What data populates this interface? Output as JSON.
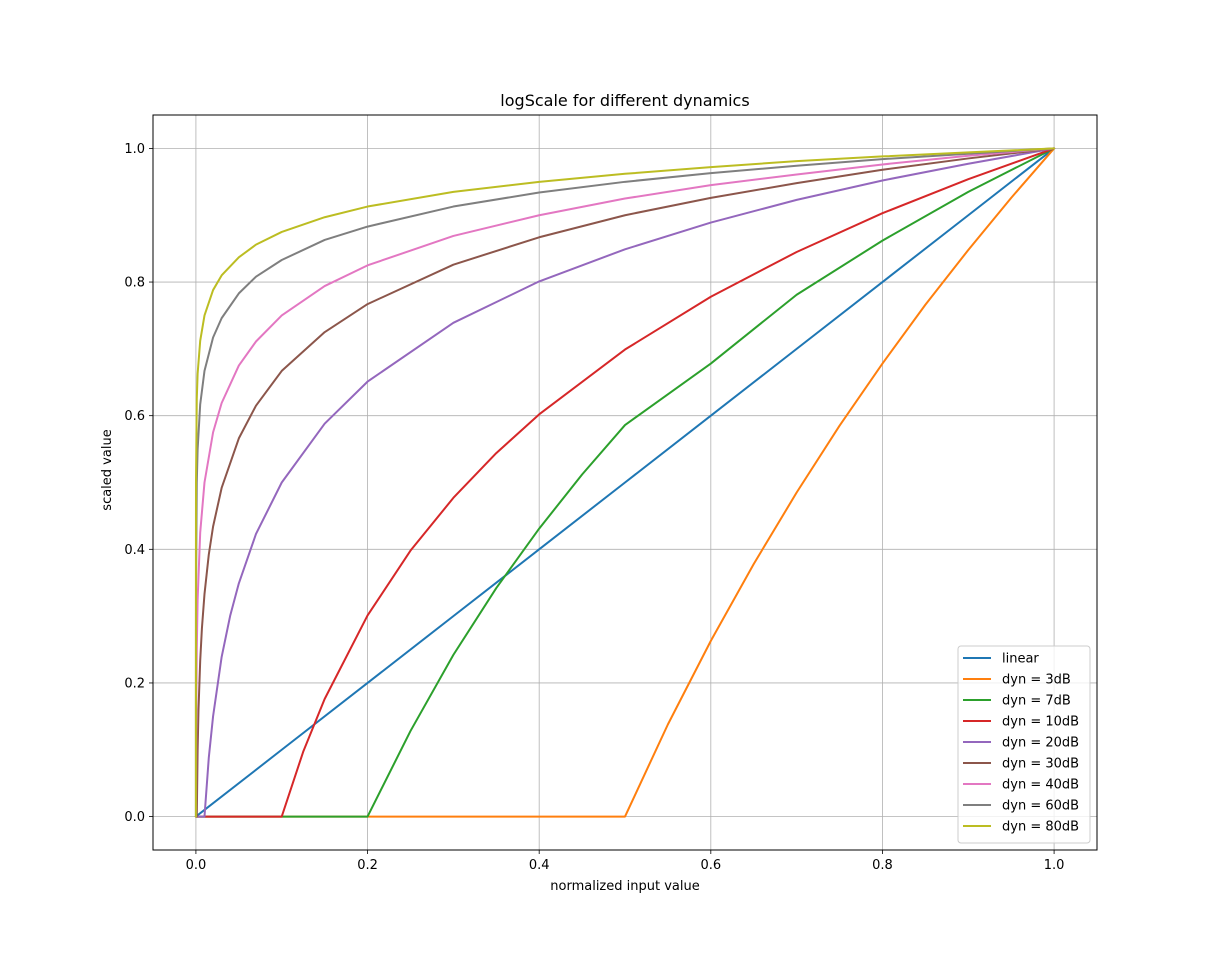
{
  "chart_data": {
    "type": "line",
    "title": "logScale for different dynamics",
    "xlabel": "normalized input value",
    "ylabel": "scaled value",
    "xlim": [
      -0.05,
      1.05
    ],
    "ylim": [
      -0.05,
      1.05
    ],
    "grid": true,
    "legend_placement": "lower-right",
    "xticks": [
      0.0,
      0.2,
      0.4,
      0.6,
      0.8,
      1.0
    ],
    "xtick_labels": [
      "0.0",
      "0.2",
      "0.4",
      "0.6",
      "0.8",
      "1.0"
    ],
    "yticks": [
      0.0,
      0.2,
      0.4,
      0.6,
      0.8,
      1.0
    ],
    "ytick_labels": [
      "0.0",
      "0.2",
      "0.4",
      "0.6",
      "0.8",
      "1.0"
    ],
    "series": [
      {
        "name": "linear",
        "color": "#1f77b4",
        "x": [
          0.0,
          0.1,
          0.2,
          0.3,
          0.4,
          0.5,
          0.6,
          0.7,
          0.8,
          0.9,
          1.0
        ],
        "y": [
          0.0,
          0.1,
          0.2,
          0.3,
          0.4,
          0.5,
          0.6,
          0.7,
          0.8,
          0.9,
          1.0
        ]
      },
      {
        "name": "dyn = 3dB",
        "color": "#ff7f0e",
        "x": [
          0.0,
          0.5,
          0.55,
          0.6,
          0.65,
          0.7,
          0.75,
          0.8,
          0.85,
          0.9,
          0.95,
          1.0
        ],
        "y": [
          0.0,
          0.0,
          0.138,
          0.263,
          0.378,
          0.485,
          0.585,
          0.678,
          0.766,
          0.848,
          0.926,
          1.0
        ]
      },
      {
        "name": "dyn = 7dB",
        "color": "#2ca02c",
        "x": [
          0.0,
          0.2,
          0.25,
          0.3,
          0.35,
          0.4,
          0.45,
          0.5,
          0.6,
          0.7,
          0.8,
          0.9,
          1.0
        ],
        "y": [
          0.0,
          0.0,
          0.128,
          0.242,
          0.342,
          0.431,
          0.512,
          0.586,
          0.678,
          0.781,
          0.862,
          0.935,
          1.0
        ]
      },
      {
        "name": "dyn = 10dB",
        "color": "#d62728",
        "x": [
          0.0,
          0.1,
          0.125,
          0.15,
          0.2,
          0.25,
          0.3,
          0.35,
          0.4,
          0.5,
          0.6,
          0.7,
          0.8,
          0.9,
          1.0
        ],
        "y": [
          0.0,
          0.0,
          0.097,
          0.176,
          0.301,
          0.398,
          0.477,
          0.544,
          0.602,
          0.699,
          0.778,
          0.845,
          0.903,
          0.954,
          1.0
        ]
      },
      {
        "name": "dyn = 20dB",
        "color": "#9467bd",
        "x": [
          0.0,
          0.005,
          0.01,
          0.015,
          0.02,
          0.03,
          0.04,
          0.05,
          0.07,
          0.1,
          0.15,
          0.2,
          0.3,
          0.4,
          0.5,
          0.6,
          0.7,
          0.8,
          0.9,
          1.0
        ],
        "y": [
          0.0,
          0.0,
          0.0,
          0.088,
          0.15,
          0.239,
          0.301,
          0.349,
          0.423,
          0.5,
          0.588,
          0.651,
          0.739,
          0.801,
          0.849,
          0.889,
          0.923,
          0.952,
          0.977,
          1.0
        ]
      },
      {
        "name": "dyn = 30dB",
        "color": "#8c564b",
        "x": [
          0.0,
          0.001,
          0.002,
          0.003,
          0.005,
          0.007,
          0.01,
          0.015,
          0.02,
          0.03,
          0.05,
          0.07,
          0.1,
          0.15,
          0.2,
          0.3,
          0.4,
          0.5,
          0.6,
          0.7,
          0.8,
          0.9,
          1.0
        ],
        "y": [
          0.0,
          0.0,
          0.1,
          0.159,
          0.233,
          0.282,
          0.333,
          0.392,
          0.434,
          0.492,
          0.566,
          0.615,
          0.667,
          0.725,
          0.767,
          0.826,
          0.867,
          0.9,
          0.926,
          0.948,
          0.968,
          0.985,
          1.0
        ]
      },
      {
        "name": "dyn = 40dB",
        "color": "#e377c2",
        "x": [
          0.0,
          0.0001,
          0.0005,
          0.001,
          0.002,
          0.005,
          0.01,
          0.02,
          0.03,
          0.05,
          0.07,
          0.1,
          0.15,
          0.2,
          0.3,
          0.4,
          0.5,
          0.6,
          0.7,
          0.8,
          0.9,
          1.0
        ],
        "y": [
          0.0,
          0.0,
          0.175,
          0.25,
          0.325,
          0.425,
          0.5,
          0.575,
          0.619,
          0.675,
          0.711,
          0.75,
          0.794,
          0.825,
          0.869,
          0.9,
          0.925,
          0.945,
          0.961,
          0.976,
          0.989,
          1.0
        ]
      },
      {
        "name": "dyn = 60dB",
        "color": "#7f7f7f",
        "x": [
          0.0,
          1e-05,
          0.0001,
          0.001,
          0.002,
          0.005,
          0.01,
          0.02,
          0.03,
          0.05,
          0.07,
          0.1,
          0.15,
          0.2,
          0.3,
          0.4,
          0.5,
          0.6,
          0.7,
          0.8,
          0.9,
          1.0
        ],
        "y": [
          0.0,
          0.167,
          0.333,
          0.5,
          0.55,
          0.617,
          0.667,
          0.717,
          0.746,
          0.783,
          0.808,
          0.833,
          0.863,
          0.883,
          0.913,
          0.934,
          0.95,
          0.963,
          0.974,
          0.984,
          0.992,
          1.0
        ]
      },
      {
        "name": "dyn = 80dB",
        "color": "#bcbd22",
        "x": [
          0.0,
          1e-05,
          0.0001,
          0.001,
          0.002,
          0.005,
          0.01,
          0.02,
          0.03,
          0.05,
          0.07,
          0.1,
          0.15,
          0.2,
          0.3,
          0.4,
          0.5,
          0.6,
          0.7,
          0.8,
          0.9,
          1.0
        ],
        "y": [
          0.0,
          0.375,
          0.5,
          0.625,
          0.663,
          0.712,
          0.75,
          0.788,
          0.81,
          0.837,
          0.856,
          0.875,
          0.897,
          0.913,
          0.935,
          0.95,
          0.962,
          0.972,
          0.981,
          0.988,
          0.994,
          1.0
        ]
      }
    ]
  }
}
